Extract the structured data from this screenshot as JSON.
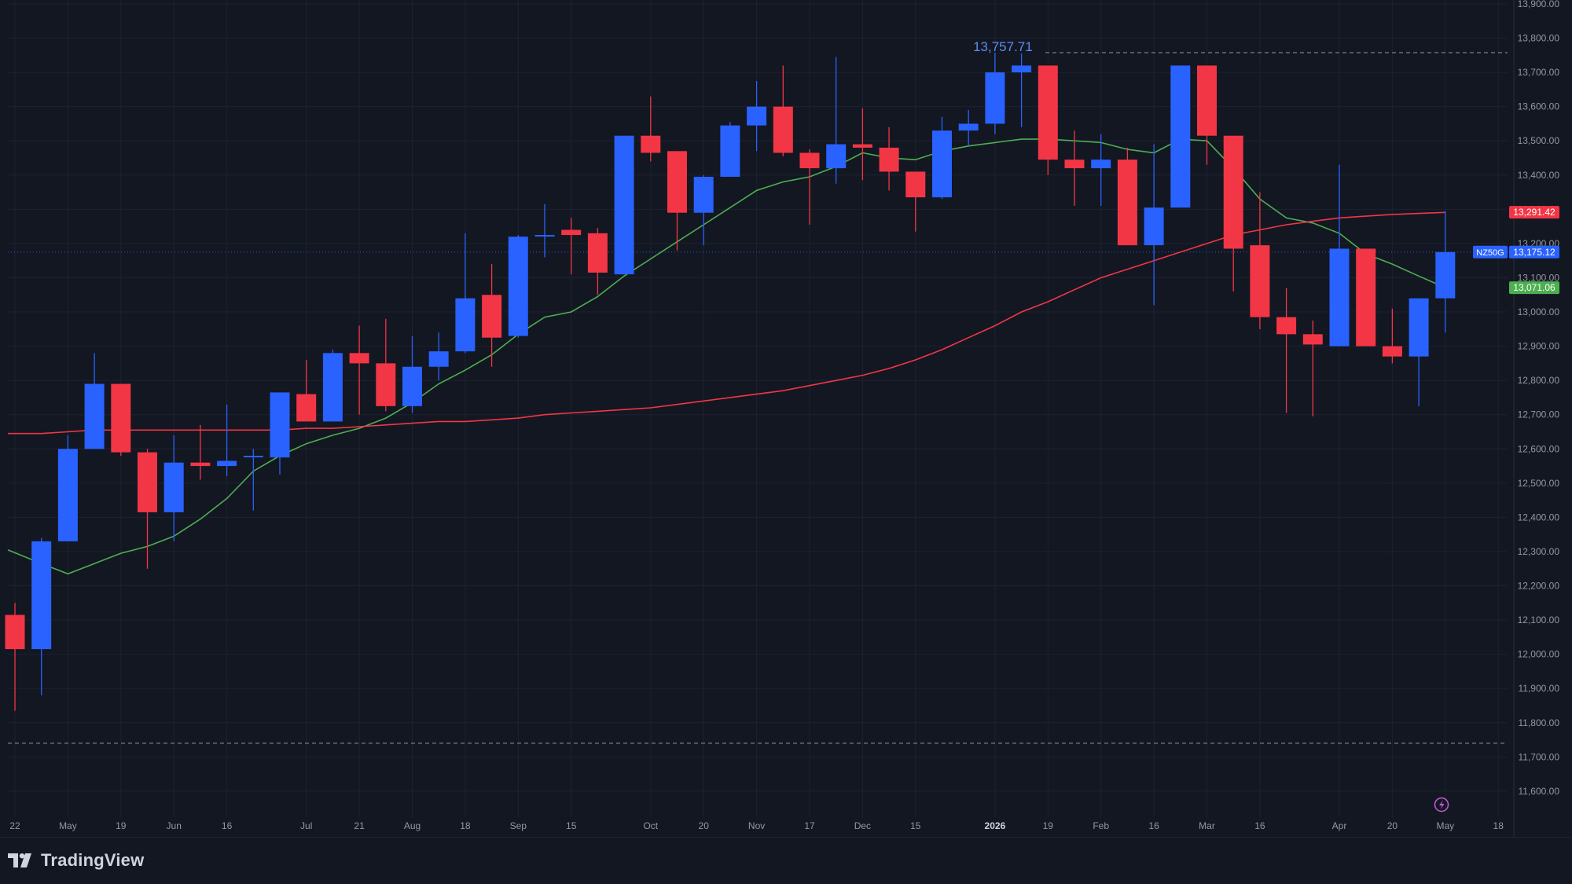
{
  "brand": {
    "name": "TradingView"
  },
  "colors": {
    "background": "#131722",
    "grid": "#1e2230",
    "axis_text": "#9598a1",
    "up": "#2962ff",
    "down": "#f23645",
    "ma_short": "#4caf50",
    "ma_long": "#f23645",
    "last_price": "#2962ff",
    "ref_line": "#9598a1"
  },
  "chart_data": {
    "type": "candlestick",
    "symbol": "NZ50G",
    "interval": "weekly",
    "title": "",
    "xlabel": "",
    "ylabel": "",
    "ylim": [
      11550,
      13900
    ],
    "grid": true,
    "y_ticks": [
      11600,
      11700,
      11800,
      11900,
      12000,
      12100,
      12200,
      12300,
      12400,
      12500,
      12600,
      12700,
      12800,
      12900,
      13000,
      13100,
      13200,
      13300,
      13400,
      13500,
      13600,
      13700,
      13800,
      13900
    ],
    "y_tick_labels": [
      "11,600.00",
      "11,700.00",
      "11,800.00",
      "11,900.00",
      "12,000.00",
      "12,100.00",
      "12,200.00",
      "12,300.00",
      "12,400.00",
      "12,500.00",
      "12,600.00",
      "12,700.00",
      "12,800.00",
      "12,900.00",
      "13,000.00",
      "13,100.00",
      "13,200.00",
      "13,300.00",
      "13,400.00",
      "13,500.00",
      "13,600.00",
      "13,700.00",
      "13,800.00",
      "13,900.00"
    ],
    "x_ticks": [
      {
        "bar": 0,
        "label": "22"
      },
      {
        "bar": 2,
        "label": "May"
      },
      {
        "bar": 4,
        "label": "19"
      },
      {
        "bar": 6,
        "label": "Jun"
      },
      {
        "bar": 8,
        "label": "16"
      },
      {
        "bar": 11,
        "label": "Jul"
      },
      {
        "bar": 13,
        "label": "21"
      },
      {
        "bar": 15,
        "label": "Aug"
      },
      {
        "bar": 17,
        "label": "18"
      },
      {
        "bar": 19,
        "label": "Sep"
      },
      {
        "bar": 21,
        "label": "15"
      },
      {
        "bar": 24,
        "label": "Oct"
      },
      {
        "bar": 26,
        "label": "20"
      },
      {
        "bar": 28,
        "label": "Nov"
      },
      {
        "bar": 30,
        "label": "17"
      },
      {
        "bar": 32,
        "label": "Dec"
      },
      {
        "bar": 34,
        "label": "15"
      },
      {
        "bar": 37,
        "label": "2026"
      },
      {
        "bar": 39,
        "label": "19"
      },
      {
        "bar": 41,
        "label": "Feb"
      },
      {
        "bar": 43,
        "label": "16"
      },
      {
        "bar": 45,
        "label": "Mar"
      },
      {
        "bar": 47,
        "label": "16"
      },
      {
        "bar": 50,
        "label": "Apr"
      },
      {
        "bar": 52,
        "label": "20"
      },
      {
        "bar": 54,
        "label": "May"
      },
      {
        "bar": 56,
        "label": "18"
      }
    ],
    "candles": [
      {
        "o": 12115,
        "h": 12150,
        "l": 11835,
        "c": 12015
      },
      {
        "o": 12015,
        "h": 12340,
        "l": 11880,
        "c": 12330
      },
      {
        "o": 12330,
        "h": 12640,
        "l": 12330,
        "c": 12600
      },
      {
        "o": 12600,
        "h": 12880,
        "l": 12600,
        "c": 12790
      },
      {
        "o": 12790,
        "h": 12790,
        "l": 12580,
        "c": 12590
      },
      {
        "o": 12590,
        "h": 12600,
        "l": 12250,
        "c": 12415
      },
      {
        "o": 12415,
        "h": 12640,
        "l": 12330,
        "c": 12560
      },
      {
        "o": 12560,
        "h": 12670,
        "l": 12510,
        "c": 12550
      },
      {
        "o": 12550,
        "h": 12730,
        "l": 12520,
        "c": 12565
      },
      {
        "o": 12580,
        "h": 12600,
        "l": 12420,
        "c": 12580
      },
      {
        "o": 12575,
        "h": 12760,
        "l": 12525,
        "c": 12765
      },
      {
        "o": 12760,
        "h": 12860,
        "l": 12680,
        "c": 12680
      },
      {
        "o": 12680,
        "h": 12890,
        "l": 12680,
        "c": 12880
      },
      {
        "o": 12880,
        "h": 12960,
        "l": 12700,
        "c": 12850
      },
      {
        "o": 12850,
        "h": 12980,
        "l": 12710,
        "c": 12725
      },
      {
        "o": 12725,
        "h": 12930,
        "l": 12705,
        "c": 12840
      },
      {
        "o": 12840,
        "h": 12940,
        "l": 12800,
        "c": 12885
      },
      {
        "o": 12885,
        "h": 13230,
        "l": 12880,
        "c": 13040
      },
      {
        "o": 13050,
        "h": 13140,
        "l": 12840,
        "c": 12925
      },
      {
        "o": 12930,
        "h": 13225,
        "l": 12925,
        "c": 13220
      },
      {
        "o": 13225,
        "h": 13315,
        "l": 13160,
        "c": 13225
      },
      {
        "o": 13240,
        "h": 13275,
        "l": 13110,
        "c": 13225
      },
      {
        "o": 13230,
        "h": 13245,
        "l": 13050,
        "c": 13115
      },
      {
        "o": 13110,
        "h": 13515,
        "l": 13110,
        "c": 13515
      },
      {
        "o": 13515,
        "h": 13630,
        "l": 13440,
        "c": 13465
      },
      {
        "o": 13470,
        "h": 13470,
        "l": 13180,
        "c": 13290
      },
      {
        "o": 13290,
        "h": 13400,
        "l": 13195,
        "c": 13395
      },
      {
        "o": 13395,
        "h": 13555,
        "l": 13400,
        "c": 13545
      },
      {
        "o": 13545,
        "h": 13675,
        "l": 13470,
        "c": 13600
      },
      {
        "o": 13600,
        "h": 13720,
        "l": 13455,
        "c": 13465
      },
      {
        "o": 13465,
        "h": 13475,
        "l": 13255,
        "c": 13420
      },
      {
        "o": 13420,
        "h": 13745,
        "l": 13375,
        "c": 13490
      },
      {
        "o": 13490,
        "h": 13595,
        "l": 13385,
        "c": 13480
      },
      {
        "o": 13480,
        "h": 13540,
        "l": 13355,
        "c": 13410
      },
      {
        "o": 13410,
        "h": 13410,
        "l": 13235,
        "c": 13335
      },
      {
        "o": 13335,
        "h": 13570,
        "l": 13330,
        "c": 13530
      },
      {
        "o": 13530,
        "h": 13590,
        "l": 13485,
        "c": 13550
      },
      {
        "o": 13550,
        "h": 13758,
        "l": 13520,
        "c": 13700
      },
      {
        "o": 13700,
        "h": 13755,
        "l": 13540,
        "c": 13720
      },
      {
        "o": 13720,
        "h": 13720,
        "l": 13400,
        "c": 13445
      },
      {
        "o": 13445,
        "h": 13530,
        "l": 13310,
        "c": 13420
      },
      {
        "o": 13420,
        "h": 13520,
        "l": 13310,
        "c": 13445
      },
      {
        "o": 13445,
        "h": 13480,
        "l": 13195,
        "c": 13195
      },
      {
        "o": 13195,
        "h": 13490,
        "l": 13020,
        "c": 13305
      },
      {
        "o": 13305,
        "h": 13720,
        "l": 13305,
        "c": 13720
      },
      {
        "o": 13720,
        "h": 13720,
        "l": 13430,
        "c": 13515
      },
      {
        "o": 13515,
        "h": 13515,
        "l": 13060,
        "c": 13185
      },
      {
        "o": 13195,
        "h": 13350,
        "l": 12950,
        "c": 12985
      },
      {
        "o": 12985,
        "h": 13070,
        "l": 12705,
        "c": 12935
      },
      {
        "o": 12935,
        "h": 12975,
        "l": 12695,
        "c": 12905
      },
      {
        "o": 12900,
        "h": 13430,
        "l": 12900,
        "c": 13185
      },
      {
        "o": 13185,
        "h": 13185,
        "l": 12900,
        "c": 12900
      },
      {
        "o": 12900,
        "h": 13010,
        "l": 12850,
        "c": 12870
      },
      {
        "o": 12870,
        "h": 13040,
        "l": 12725,
        "c": 13040
      },
      {
        "o": 13040,
        "h": 13295,
        "l": 12940,
        "c": 13175
      }
    ],
    "series": [
      {
        "name": "",
        "values": [
          12305,
          12265,
          12235,
          12265,
          12295,
          12315,
          12345,
          12395,
          12455,
          12535,
          12580,
          12615,
          12640,
          12660,
          12690,
          12735,
          12790,
          12830,
          12875,
          12935,
          12985,
          13000,
          13045,
          13105,
          13155,
          13205,
          13255,
          13305,
          13355,
          13380,
          13395,
          13425,
          13465,
          13450,
          13445,
          13470,
          13485,
          13495,
          13505,
          13505,
          13500,
          13495,
          13475,
          13465,
          13505,
          13500,
          13420,
          13330,
          13275,
          13260,
          13230,
          13170,
          13140,
          13105,
          13071
        ]
      },
      {
        "name": "",
        "values": [
          12645,
          12645,
          12650,
          12655,
          12655,
          12655,
          12655,
          12655,
          12655,
          12655,
          12655,
          12660,
          12660,
          12665,
          12670,
          12675,
          12680,
          12680,
          12685,
          12690,
          12700,
          12705,
          12710,
          12715,
          12720,
          12730,
          12740,
          12750,
          12760,
          12770,
          12785,
          12800,
          12815,
          12835,
          12860,
          12890,
          12925,
          12960,
          13000,
          13030,
          13065,
          13100,
          13125,
          13150,
          13175,
          13200,
          13225,
          13240,
          13255,
          13265,
          13275,
          13280,
          13285,
          13288,
          13291
        ]
      }
    ],
    "annotations": {
      "high_label": "13,757.71",
      "high_value": 13757.71,
      "low_ref_value": 11740
    },
    "price_labels": [
      {
        "text": "13,291.42",
        "value": 13291.42,
        "color": "#f23645"
      },
      {
        "text": "13,175.12",
        "value": 13175.12,
        "color": "#2962ff",
        "symbol": "NZ50G"
      },
      {
        "text": "13,071.06",
        "value": 13071.06,
        "color": "#4caf50"
      }
    ]
  }
}
